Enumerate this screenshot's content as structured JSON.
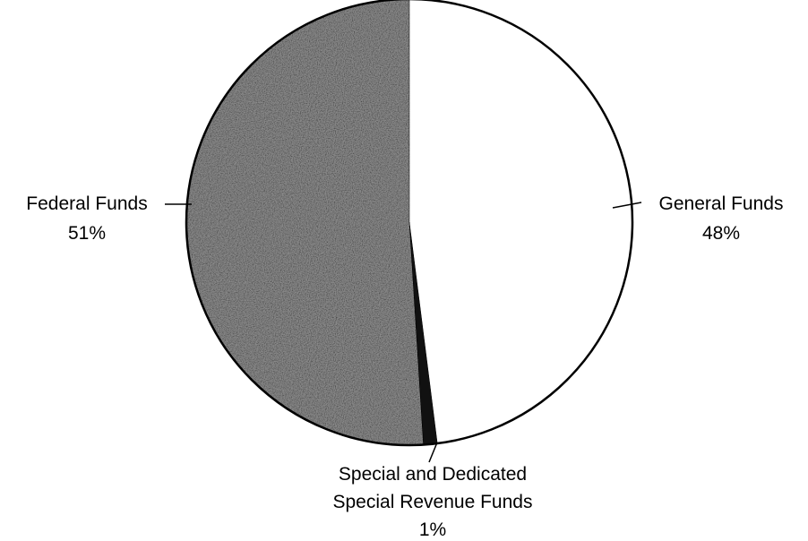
{
  "chart_data": {
    "type": "pie",
    "title": "",
    "start_angle_deg": 0,
    "direction": "clockwise",
    "slices": [
      {
        "label_lines": [
          "General Funds",
          "48%"
        ],
        "value": 48,
        "color": "#ffffff",
        "texture": "none"
      },
      {
        "label_lines": [
          "Special and Dedicated",
          "Special Revenue Funds",
          "1%"
        ],
        "value": 1,
        "color": "#111111",
        "texture": "none"
      },
      {
        "label_lines": [
          "Federal Funds",
          "51%"
        ],
        "value": 51,
        "color": "#8a8a8a",
        "texture": "stipple"
      }
    ]
  }
}
